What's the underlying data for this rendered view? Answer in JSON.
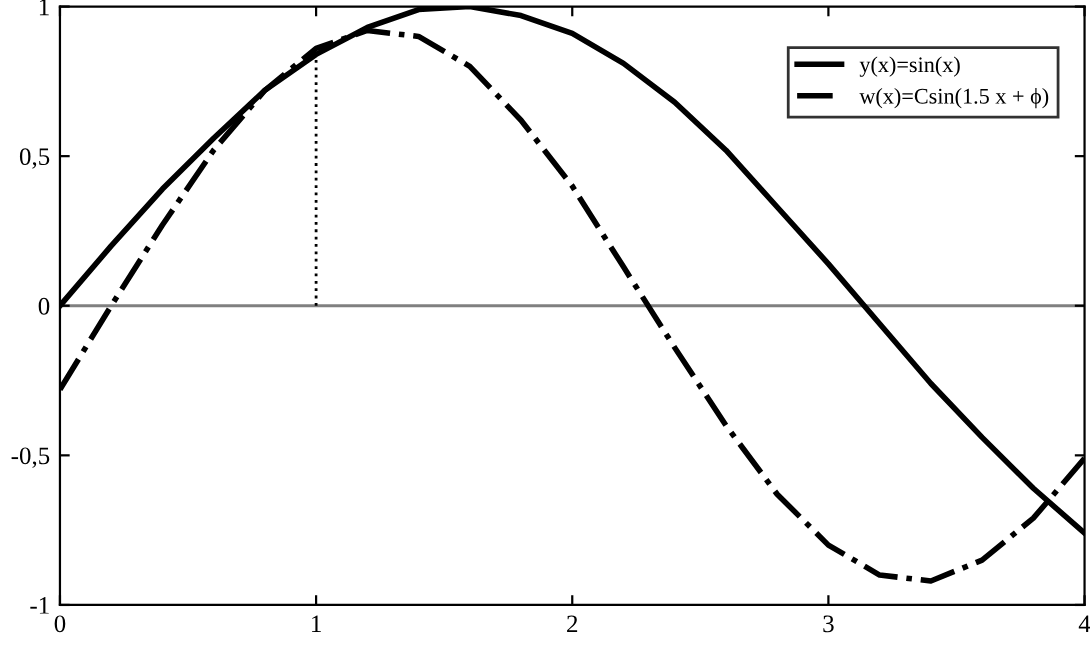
{
  "chart_data": {
    "type": "line",
    "x": [
      0,
      0.2,
      0.4,
      0.6,
      0.8,
      1,
      1.2,
      1.4,
      1.6,
      1.8,
      2,
      2.2,
      2.4,
      2.6,
      2.8,
      3,
      3.2,
      3.4,
      3.6,
      3.8,
      4
    ],
    "series": [
      {
        "name": "y(x)=sin(x)",
        "color": "#000000",
        "line_style": "solid",
        "values": [
          0,
          0.2,
          0.39,
          0.56,
          0.72,
          0.84,
          0.93,
          0.99,
          1.0,
          0.97,
          0.91,
          0.81,
          0.68,
          0.52,
          0.33,
          0.14,
          -0.06,
          -0.26,
          -0.44,
          -0.61,
          -0.76
        ]
      },
      {
        "name": "w(x)=Csin(1.5 x + ϕ)",
        "color": "#000000",
        "line_style": "dashdot",
        "values": [
          -0.28,
          0.0,
          0.27,
          0.52,
          0.72,
          0.86,
          0.92,
          0.9,
          0.8,
          0.62,
          0.4,
          0.13,
          -0.14,
          -0.4,
          -0.63,
          -0.8,
          -0.9,
          -0.92,
          -0.85,
          -0.71,
          -0.51
        ]
      },
      {
        "color": "#000000",
        "line_style": "dotted",
        "x": [
          1,
          1
        ],
        "values": [
          0,
          0.84
        ]
      }
    ],
    "xlim": [
      0,
      4
    ],
    "ylim": [
      -1,
      1
    ],
    "xticks": [
      0,
      1,
      2,
      3,
      4
    ],
    "yticks": [
      -1,
      {
        "value": -0.5,
        "label": "-0,5"
      },
      0,
      {
        "value": 0.5,
        "label": "0,5"
      },
      1
    ],
    "ref_lines": [
      {
        "axis": "y",
        "value": 0,
        "color": "#808080"
      }
    ],
    "grid": false,
    "legend": "top right"
  }
}
